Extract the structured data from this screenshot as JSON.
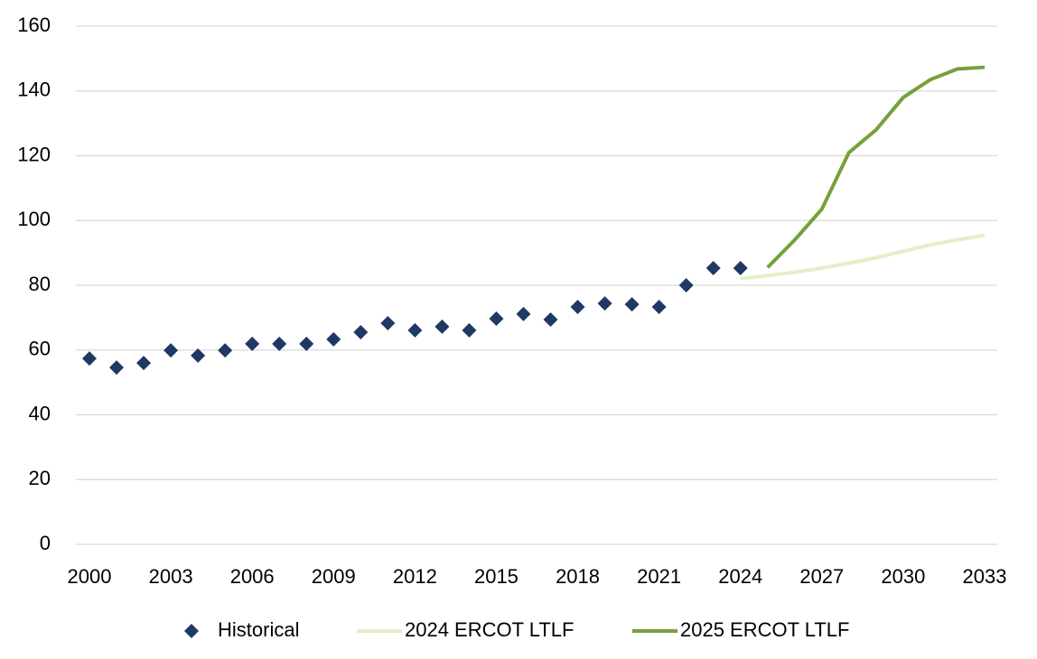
{
  "chart_data": {
    "type": "line",
    "ylim": [
      0,
      160
    ],
    "yticks": [
      0,
      20,
      40,
      60,
      80,
      100,
      120,
      140,
      160
    ],
    "xlim": [
      2000,
      2033
    ],
    "xticks": [
      2000,
      2003,
      2006,
      2009,
      2012,
      2015,
      2018,
      2021,
      2024,
      2027,
      2030,
      2033
    ],
    "grid": true,
    "legend": "bottom",
    "series": [
      {
        "name": "Historical",
        "color": "#203864",
        "style": "markers",
        "x": [
          2000,
          2001,
          2002,
          2003,
          2004,
          2005,
          2006,
          2007,
          2008,
          2009,
          2010,
          2011,
          2012,
          2013,
          2014,
          2015,
          2016,
          2017,
          2018,
          2019,
          2020,
          2021,
          2022,
          2023,
          2024
        ],
        "values": [
          57.4,
          54.6,
          56.0,
          59.9,
          58.3,
          59.9,
          61.9,
          61.9,
          61.9,
          63.3,
          65.5,
          68.3,
          66.1,
          67.2,
          66.1,
          69.7,
          71.1,
          69.4,
          73.3,
          74.4,
          74.1,
          73.3,
          80.0,
          85.3,
          85.3
        ]
      },
      {
        "name": "2024 ERCOT LTLF",
        "color": "#e2efc9",
        "style": "line",
        "x": [
          2024,
          2025,
          2026,
          2027,
          2028,
          2029,
          2030,
          2031,
          2032,
          2033
        ],
        "values": [
          82.0,
          83.0,
          84.0,
          85.3,
          86.8,
          88.5,
          90.5,
          92.5,
          94.0,
          95.4
        ]
      },
      {
        "name": "2025 ERCOT LTLF",
        "color": "#77a03c",
        "style": "line",
        "x": [
          2025,
          2026,
          2027,
          2028,
          2029,
          2030,
          2031,
          2032,
          2033
        ],
        "values": [
          85.5,
          94.0,
          103.5,
          121.0,
          128.0,
          138.0,
          143.5,
          146.8,
          147.3
        ]
      }
    ]
  }
}
